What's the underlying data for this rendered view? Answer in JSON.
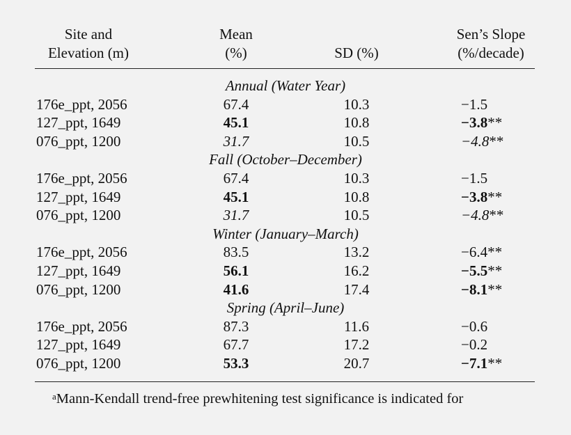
{
  "header": {
    "site_line1": "Site and",
    "site_line2": "Elevation (m)",
    "mean_line1": "Mean",
    "mean_line2": "(%)",
    "sd": "SD (%)",
    "slope_line1": "Sen’s Slope",
    "slope_line2": "(%/decade)"
  },
  "sections": [
    {
      "title": "Annual (Water Year)",
      "rows": [
        {
          "site": "176e_ppt, 2056",
          "mean": "67.4",
          "mean_style": "normal",
          "sd": "10.3",
          "slope": "−1.5",
          "slope_style": "normal",
          "stars": ""
        },
        {
          "site": "127_ppt, 1649",
          "mean": "45.1",
          "mean_style": "bold",
          "sd": "10.8",
          "slope": "−3.8",
          "slope_style": "bold",
          "stars": "**"
        },
        {
          "site": "076_ppt, 1200",
          "mean": "31.7",
          "mean_style": "italic",
          "sd": "10.5",
          "slope": "−4.8",
          "slope_style": "italic",
          "stars": "**"
        }
      ]
    },
    {
      "title": "Fall (October–December)",
      "rows": [
        {
          "site": "176e_ppt, 2056",
          "mean": "67.4",
          "mean_style": "normal",
          "sd": "10.3",
          "slope": "−1.5",
          "slope_style": "normal",
          "stars": ""
        },
        {
          "site": "127_ppt, 1649",
          "mean": "45.1",
          "mean_style": "bold",
          "sd": "10.8",
          "slope": "−3.8",
          "slope_style": "bold",
          "stars": "**"
        },
        {
          "site": "076_ppt, 1200",
          "mean": "31.7",
          "mean_style": "italic",
          "sd": "10.5",
          "slope": "−4.8",
          "slope_style": "italic",
          "stars": "**"
        }
      ]
    },
    {
      "title": "Winter (January–March)",
      "rows": [
        {
          "site": "176e_ppt, 2056",
          "mean": "83.5",
          "mean_style": "normal",
          "sd": "13.2",
          "slope": "−6.4",
          "slope_style": "normal",
          "stars": "**"
        },
        {
          "site": "127_ppt, 1649",
          "mean": "56.1",
          "mean_style": "bold",
          "sd": "16.2",
          "slope": "−5.5",
          "slope_style": "bold",
          "stars": "**"
        },
        {
          "site": "076_ppt, 1200",
          "mean": "41.6",
          "mean_style": "bold",
          "sd": "17.4",
          "slope": "−8.1",
          "slope_style": "bold",
          "stars": "**"
        }
      ]
    },
    {
      "title": "Spring (April–June)",
      "rows": [
        {
          "site": "176e_ppt, 2056",
          "mean": "87.3",
          "mean_style": "normal",
          "sd": "11.6",
          "slope": "−0.6",
          "slope_style": "normal",
          "stars": ""
        },
        {
          "site": "127_ppt, 1649",
          "mean": "67.7",
          "mean_style": "normal",
          "sd": "17.2",
          "slope": "−0.2",
          "slope_style": "normal",
          "stars": ""
        },
        {
          "site": "076_ppt, 1200",
          "mean": "53.3",
          "mean_style": "bold",
          "sd": "20.7",
          "slope": "−7.1",
          "slope_style": "bold",
          "stars": "**"
        }
      ]
    }
  ],
  "footnote": {
    "marker": "a",
    "text": "Mann-Kendall trend-free prewhitening test significance is indicated for"
  }
}
